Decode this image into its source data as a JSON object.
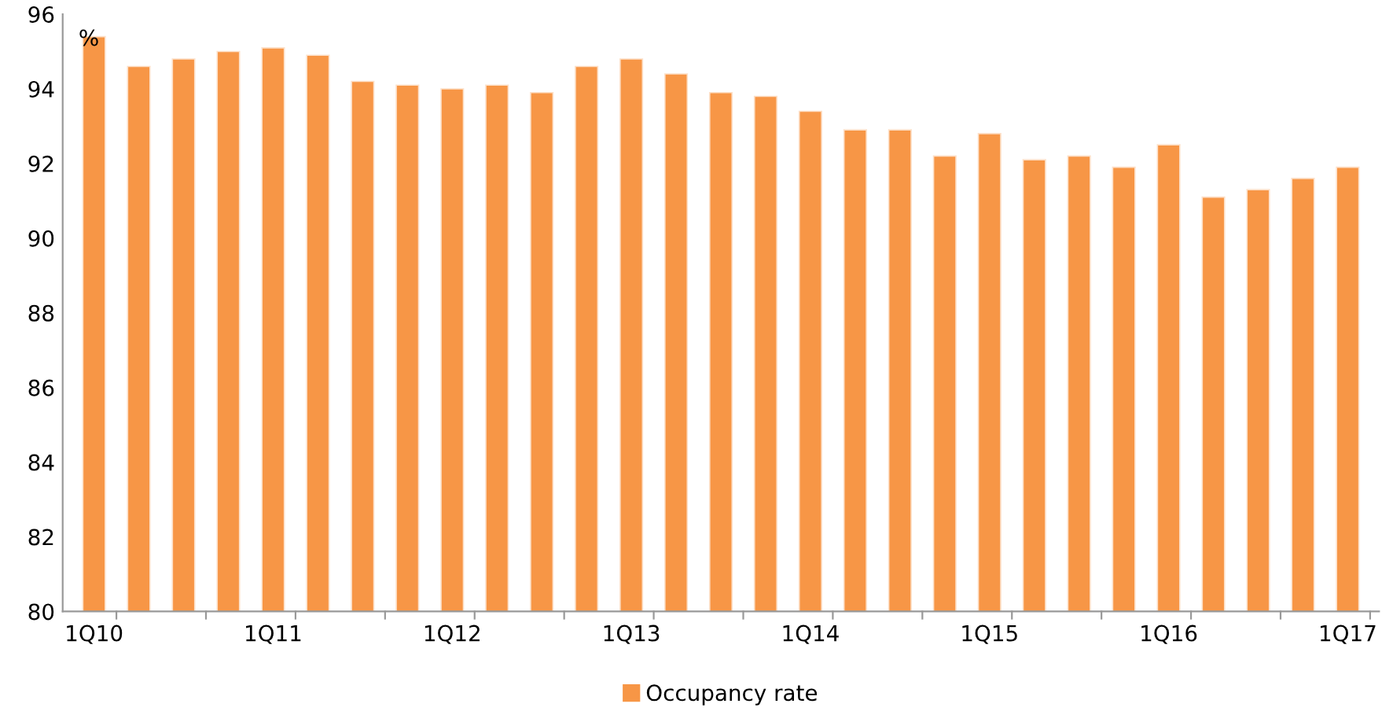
{
  "chart_data": {
    "type": "bar",
    "ylabel": "%",
    "categories": [
      "1Q10",
      null,
      null,
      null,
      "1Q11",
      null,
      null,
      null,
      "1Q12",
      null,
      null,
      null,
      "1Q13",
      null,
      null,
      null,
      "1Q14",
      null,
      null,
      null,
      "1Q15",
      null,
      null,
      null,
      "1Q16",
      null,
      null,
      null,
      "1Q17"
    ],
    "series": [
      {
        "name": "Occupancy rate",
        "color": "#f79646",
        "values": [
          95.4,
          94.6,
          94.8,
          95.0,
          95.1,
          94.9,
          94.2,
          94.1,
          94.0,
          94.1,
          93.9,
          94.6,
          94.8,
          94.4,
          93.9,
          93.8,
          93.4,
          92.9,
          92.9,
          92.2,
          92.8,
          92.1,
          92.2,
          91.9,
          92.5,
          91.1,
          91.3,
          91.6,
          91.9
        ]
      }
    ],
    "ylim": [
      80,
      96
    ],
    "yticks": [
      80,
      82,
      84,
      86,
      88,
      90,
      92,
      94,
      96
    ],
    "grid": false,
    "legend": "bottom"
  }
}
